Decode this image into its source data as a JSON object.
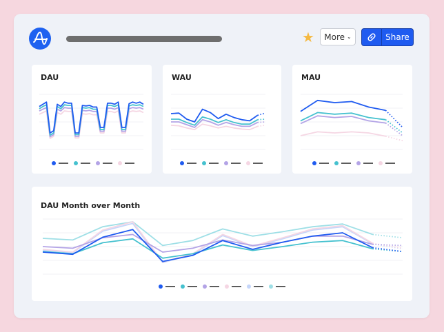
{
  "header": {
    "more_label": "More",
    "share_label": "Share",
    "star_color": "#f5b942",
    "brand_color": "#1e61f0",
    "icons": {
      "logo": "amplitude-logo",
      "star": "star-icon",
      "share": "link-icon",
      "more": "chevron-down-icon"
    }
  },
  "colors": {
    "blue": "#1f5bf0",
    "teal": "#45c1cf",
    "purple": "#b3a3e6",
    "pink": "#f5d6e3",
    "lightblue": "#c5d6fa",
    "lightteal": "#9edfe6"
  },
  "chart_data": [
    {
      "type": "line",
      "title": "DAU",
      "ylim": [
        0,
        100
      ],
      "grid": true,
      "legend": "bottom",
      "projected_tail": false,
      "series": [
        {
          "color": "blue",
          "values": [
            78,
            82,
            86,
            30,
            34,
            82,
            78,
            86,
            84,
            84,
            30,
            30,
            80,
            79,
            80,
            77,
            77,
            40,
            40,
            84,
            84,
            82,
            86,
            40,
            40,
            83,
            86,
            84,
            86,
            82
          ]
        },
        {
          "color": "teal",
          "values": [
            74,
            78,
            81,
            26,
            30,
            78,
            74,
            81,
            80,
            80,
            27,
            27,
            76,
            75,
            76,
            73,
            73,
            36,
            36,
            80,
            80,
            78,
            81,
            36,
            36,
            79,
            81,
            80,
            81,
            78
          ]
        },
        {
          "color": "purple",
          "values": [
            70,
            73,
            76,
            23,
            27,
            73,
            70,
            76,
            75,
            75,
            24,
            24,
            71,
            70,
            71,
            69,
            69,
            33,
            33,
            75,
            75,
            73,
            76,
            33,
            33,
            74,
            76,
            75,
            76,
            73
          ]
        },
        {
          "color": "pink",
          "values": [
            64,
            67,
            70,
            20,
            24,
            67,
            64,
            70,
            69,
            69,
            21,
            21,
            65,
            64,
            65,
            63,
            63,
            30,
            30,
            69,
            69,
            67,
            70,
            30,
            30,
            68,
            70,
            69,
            70,
            67
          ]
        }
      ]
    },
    {
      "type": "line",
      "title": "WAU",
      "ylim": [
        0,
        100
      ],
      "grid": true,
      "legend": "bottom",
      "projected_tail": true,
      "series": [
        {
          "color": "blue",
          "values": [
            65,
            66,
            55,
            50,
            73,
            67,
            56,
            64,
            58,
            54,
            52,
            62,
            66
          ]
        },
        {
          "color": "teal",
          "values": [
            55,
            55,
            49,
            44,
            59,
            55,
            49,
            54,
            49,
            46,
            46,
            54,
            55
          ]
        },
        {
          "color": "purple",
          "values": [
            50,
            50,
            45,
            40,
            54,
            50,
            44,
            49,
            45,
            42,
            42,
            49,
            50
          ]
        },
        {
          "color": "pink",
          "values": [
            44,
            43,
            39,
            36,
            46,
            43,
            39,
            42,
            39,
            37,
            36,
            42,
            44
          ]
        }
      ]
    },
    {
      "type": "line",
      "title": "MAU",
      "ylim": [
        0,
        100
      ],
      "grid": true,
      "legend": "bottom",
      "projected_tail": true,
      "series": [
        {
          "color": "blue",
          "values": [
            69,
            89,
            85,
            87,
            77,
            71,
            40
          ]
        },
        {
          "color": "teal",
          "values": [
            52,
            67,
            64,
            66,
            58,
            54,
            30
          ]
        },
        {
          "color": "purple",
          "values": [
            47,
            61,
            58,
            60,
            52,
            48,
            25
          ]
        },
        {
          "color": "pink",
          "values": [
            25,
            32,
            30,
            32,
            30,
            24,
            16
          ]
        }
      ]
    },
    {
      "type": "line",
      "title": "DAU Month over Month",
      "ylim": [
        0,
        100
      ],
      "grid": true,
      "legend": "bottom",
      "projected_tail": true,
      "series": [
        {
          "color": "blue",
          "values": [
            40,
            36,
            67,
            81,
            23,
            34,
            61,
            45,
            58,
            69,
            75,
            48,
            41
          ]
        },
        {
          "color": "teal",
          "values": [
            41,
            37,
            57,
            64,
            29,
            37,
            53,
            43,
            50,
            58,
            61,
            46,
            41
          ]
        },
        {
          "color": "purple",
          "values": [
            50,
            47,
            66,
            72,
            40,
            47,
            62,
            52,
            58,
            69,
            69,
            54,
            52
          ]
        },
        {
          "color": "pink",
          "values": [
            45,
            40,
            80,
            95,
            22,
            37,
            72,
            51,
            66,
            82,
            88,
            56,
            47
          ]
        },
        {
          "color": "lightblue",
          "values": [
            44,
            39,
            78,
            92,
            21,
            36,
            70,
            50,
            64,
            80,
            86,
            55,
            46
          ]
        },
        {
          "color": "lightteal",
          "values": [
            65,
            62,
            86,
            95,
            52,
            61,
            82,
            69,
            77,
            86,
            91,
            72,
            66
          ]
        }
      ]
    }
  ]
}
